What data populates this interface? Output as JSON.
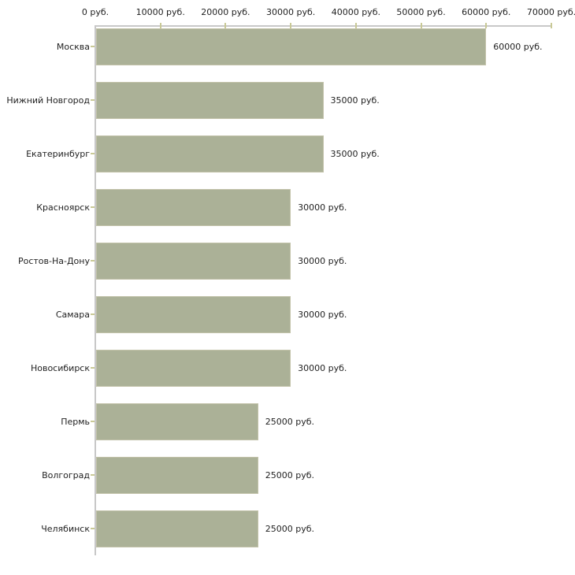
{
  "chart_data": {
    "type": "bar",
    "orientation": "horizontal",
    "unit": "руб.",
    "xlim": [
      0,
      70000
    ],
    "grid": false,
    "legend_visible": false,
    "x_tick_values": [
      0,
      10000,
      20000,
      30000,
      40000,
      50000,
      60000,
      70000
    ],
    "x_tick_labels": [
      "0 руб.",
      "10000 руб.",
      "20000 руб.",
      "30000 руб.",
      "40000 руб.",
      "50000 руб.",
      "60000 руб.",
      "70000 руб."
    ],
    "categories": [
      "Москва",
      "Нижний Новгород",
      "Екатеринбург",
      "Красноярск",
      "Ростов-На-Дону",
      "Самара",
      "Новосибирск",
      "Пермь",
      "Волгоград",
      "Челябинск"
    ],
    "values": [
      60000,
      35000,
      35000,
      30000,
      30000,
      30000,
      30000,
      25000,
      25000,
      25000
    ],
    "value_labels": [
      "60000 руб.",
      "35000 руб.",
      "35000 руб.",
      "30000 руб.",
      "30000 руб.",
      "30000 руб.",
      "30000 руб.",
      "25000 руб.",
      "25000 руб.",
      "25000 руб."
    ],
    "colors": {
      "bar_fill": "#abb197",
      "bar_border": "#c2c2a9",
      "axis_line": "#c8c8c8",
      "tick_mark": "#c9c996",
      "text": "#1f1f1f",
      "background": "#ffffff"
    }
  }
}
